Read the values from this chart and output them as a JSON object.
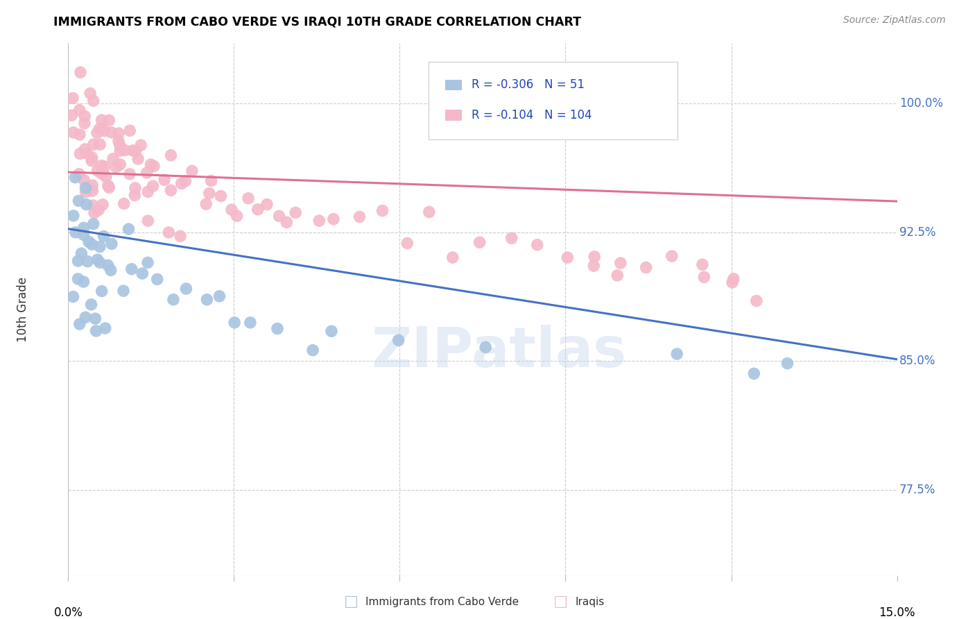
{
  "title": "IMMIGRANTS FROM CABO VERDE VS IRAQI 10TH GRADE CORRELATION CHART",
  "source": "Source: ZipAtlas.com",
  "ylabel": "10th Grade",
  "ytick_labels": [
    "77.5%",
    "85.0%",
    "92.5%",
    "100.0%"
  ],
  "ytick_values": [
    0.775,
    0.85,
    0.925,
    1.0
  ],
  "xmin": 0.0,
  "xmax": 0.15,
  "ymin": 0.725,
  "ymax": 1.035,
  "legend_r_cabo": "-0.306",
  "legend_n_cabo": "51",
  "legend_r_iraqi": "-0.104",
  "legend_n_iraqi": "104",
  "cabo_color": "#a8c4e0",
  "iraqi_color": "#f4b8c8",
  "cabo_line_color": "#4472c4",
  "iraqi_line_color": "#e07090",
  "cabo_line_x0": 0.0,
  "cabo_line_y0": 0.927,
  "cabo_line_x1": 0.15,
  "cabo_line_y1": 0.851,
  "iraqi_line_x0": 0.0,
  "iraqi_line_y0": 0.96,
  "iraqi_line_x1": 0.15,
  "iraqi_line_y1": 0.943,
  "watermark": "ZIPatlas",
  "cabo_x": [
    0.001,
    0.001,
    0.001,
    0.001,
    0.001,
    0.002,
    0.002,
    0.002,
    0.002,
    0.003,
    0.003,
    0.003,
    0.003,
    0.003,
    0.004,
    0.004,
    0.004,
    0.004,
    0.005,
    0.005,
    0.005,
    0.005,
    0.005,
    0.006,
    0.006,
    0.006,
    0.007,
    0.007,
    0.007,
    0.008,
    0.008,
    0.01,
    0.01,
    0.012,
    0.013,
    0.015,
    0.016,
    0.02,
    0.022,
    0.025,
    0.027,
    0.03,
    0.033,
    0.038,
    0.045,
    0.048,
    0.06,
    0.075,
    0.11,
    0.125,
    0.13
  ],
  "cabo_y": [
    0.96,
    0.94,
    0.92,
    0.9,
    0.88,
    0.95,
    0.93,
    0.91,
    0.89,
    0.945,
    0.925,
    0.905,
    0.885,
    0.865,
    0.94,
    0.92,
    0.9,
    0.88,
    0.935,
    0.915,
    0.895,
    0.875,
    0.855,
    0.93,
    0.91,
    0.89,
    0.925,
    0.905,
    0.885,
    0.92,
    0.9,
    0.915,
    0.895,
    0.91,
    0.905,
    0.9,
    0.895,
    0.89,
    0.888,
    0.885,
    0.88,
    0.878,
    0.875,
    0.872,
    0.868,
    0.865,
    0.86,
    0.858,
    0.856,
    0.854,
    0.852
  ],
  "iraqi_x": [
    0.001,
    0.001,
    0.001,
    0.002,
    0.002,
    0.002,
    0.002,
    0.002,
    0.003,
    0.003,
    0.003,
    0.003,
    0.003,
    0.003,
    0.004,
    0.004,
    0.004,
    0.004,
    0.004,
    0.005,
    0.005,
    0.005,
    0.005,
    0.005,
    0.005,
    0.005,
    0.006,
    0.006,
    0.006,
    0.006,
    0.006,
    0.006,
    0.007,
    0.007,
    0.007,
    0.007,
    0.007,
    0.008,
    0.008,
    0.008,
    0.008,
    0.009,
    0.009,
    0.009,
    0.01,
    0.01,
    0.01,
    0.011,
    0.011,
    0.012,
    0.012,
    0.012,
    0.013,
    0.013,
    0.014,
    0.014,
    0.015,
    0.015,
    0.016,
    0.017,
    0.018,
    0.019,
    0.02,
    0.021,
    0.022,
    0.024,
    0.026,
    0.028,
    0.03,
    0.033,
    0.036,
    0.038,
    0.041,
    0.045,
    0.048,
    0.052,
    0.057,
    0.06,
    0.065,
    0.07,
    0.075,
    0.08,
    0.085,
    0.09,
    0.095,
    0.1,
    0.105,
    0.11,
    0.115,
    0.12,
    0.095,
    0.1,
    0.115,
    0.12,
    0.125,
    0.01,
    0.012,
    0.015,
    0.018,
    0.02,
    0.025,
    0.03,
    0.035,
    0.04
  ],
  "iraqi_y": [
    1.0,
    0.99,
    0.98,
    0.995,
    0.985,
    0.975,
    0.965,
    0.955,
    0.998,
    0.988,
    0.978,
    0.968,
    0.958,
    0.948,
    0.992,
    0.982,
    0.972,
    0.962,
    0.952,
    0.995,
    0.985,
    0.975,
    0.965,
    0.955,
    0.945,
    0.935,
    0.99,
    0.98,
    0.97,
    0.96,
    0.95,
    0.94,
    0.988,
    0.978,
    0.968,
    0.958,
    0.948,
    0.985,
    0.975,
    0.965,
    0.955,
    0.982,
    0.972,
    0.962,
    0.98,
    0.97,
    0.96,
    0.978,
    0.968,
    0.975,
    0.965,
    0.955,
    0.973,
    0.963,
    0.97,
    0.96,
    0.968,
    0.958,
    0.965,
    0.963,
    0.96,
    0.958,
    0.956,
    0.954,
    0.952,
    0.95,
    0.948,
    0.946,
    0.944,
    0.942,
    0.94,
    0.938,
    0.936,
    0.934,
    0.932,
    0.93,
    0.928,
    0.926,
    0.924,
    0.922,
    0.92,
    0.918,
    0.916,
    0.914,
    0.912,
    0.91,
    0.908,
    0.906,
    0.904,
    0.902,
    0.9,
    0.898,
    0.894,
    0.892,
    0.89,
    0.945,
    0.942,
    0.928,
    0.925,
    0.922,
    0.94,
    0.938,
    0.935,
    0.932
  ]
}
